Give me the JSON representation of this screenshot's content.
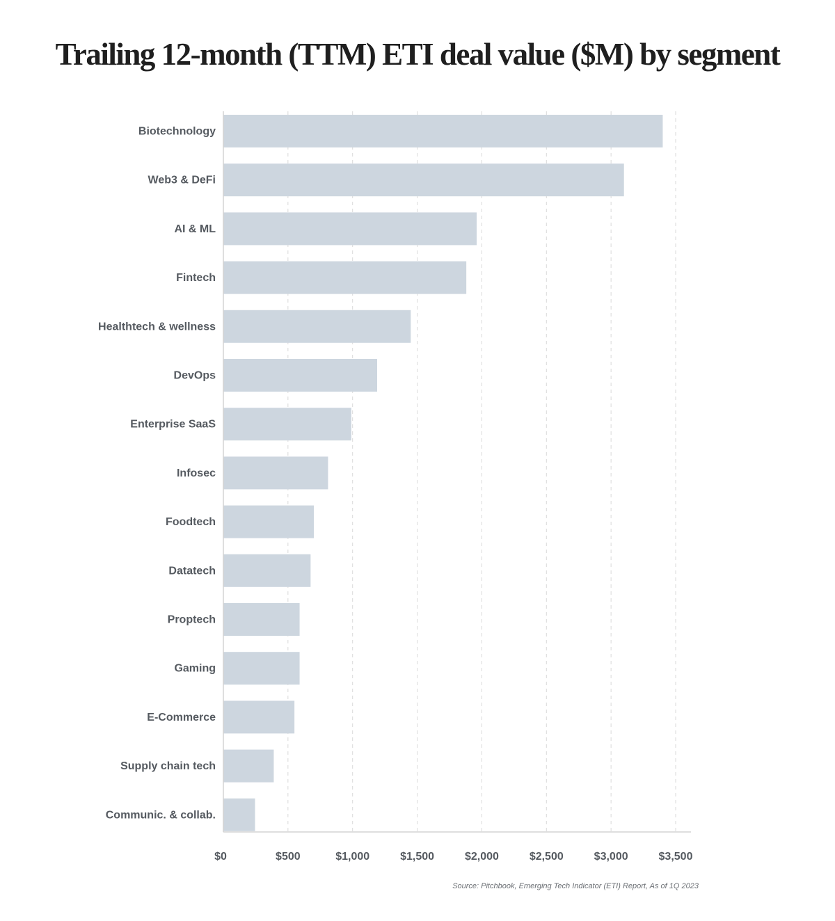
{
  "chart_data": {
    "type": "bar",
    "orientation": "horizontal",
    "title": "Trailing 12-month (TTM) ETI deal value ($M) by segment",
    "categories": [
      "Biotechnology",
      "Web3 & DeFi",
      "AI & ML",
      "Fintech",
      "Healthtech & wellness",
      "DevOps",
      "Enterprise SaaS",
      "Infosec",
      "Foodtech",
      "Datatech",
      "Proptech",
      "Gaming",
      "E-Commerce",
      "Supply chain tech",
      "Communic. & collab."
    ],
    "values": [
      3400,
      3100,
      1960,
      1880,
      1450,
      1190,
      990,
      810,
      700,
      675,
      590,
      590,
      550,
      390,
      245
    ],
    "xlim": [
      0,
      3500
    ],
    "xticks": [
      0,
      500,
      1000,
      1500,
      2000,
      2500,
      3000,
      3500
    ],
    "xtick_labels": [
      "$0",
      "$500",
      "$1,000",
      "$1,500",
      "$2,000",
      "$2,500",
      "$3,000",
      "$3,500"
    ],
    "grid": "vertical dashed",
    "legend": "none",
    "bar_color": "#cdd6df",
    "grid_color": "#d9d9d9",
    "axis_color": "#d4d4d4",
    "label_color": "#555a60"
  },
  "source": "Source: Pitchbook, Emerging Tech Indicator (ETI) Report, As of 1Q 2023"
}
